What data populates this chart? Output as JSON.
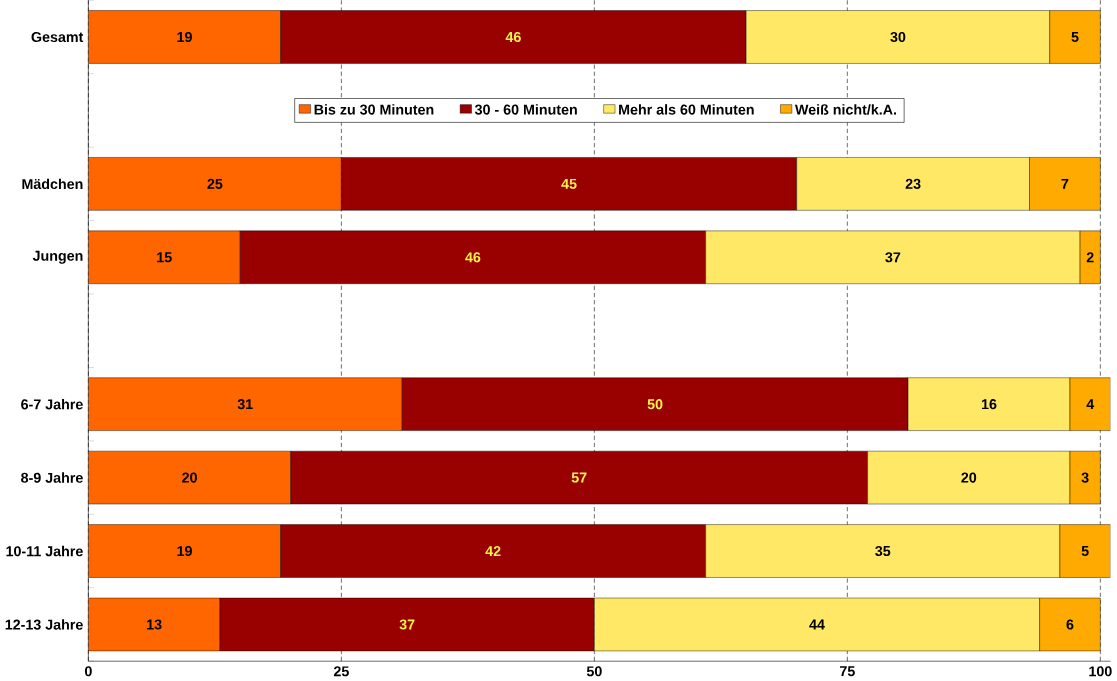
{
  "chart_data": {
    "type": "bar",
    "orientation": "horizontal",
    "stacked": true,
    "categories": [
      "Gesamt",
      null,
      "Mädchen",
      "Jungen",
      null,
      "6-7 Jahre",
      "8-9 Jahre",
      "10-11 Jahre",
      "12-13 Jahre"
    ],
    "series": [
      {
        "name": "Bis zu 30 Minuten",
        "color": "#ff6600",
        "values": [
          19,
          null,
          25,
          15,
          null,
          31,
          20,
          19,
          13
        ]
      },
      {
        "name": "30 - 60 Minuten",
        "color": "#990000",
        "values": [
          46,
          null,
          45,
          46,
          null,
          50,
          57,
          42,
          37
        ]
      },
      {
        "name": "Mehr als 60 Minuten",
        "color": "#ffe866",
        "values": [
          30,
          null,
          23,
          37,
          null,
          16,
          20,
          35,
          44
        ]
      },
      {
        "name": "Weiß nicht/k.A.",
        "color": "#ffaa00",
        "values": [
          5,
          null,
          7,
          2,
          null,
          4,
          3,
          5,
          6
        ]
      }
    ],
    "xlim": [
      0,
      101
    ],
    "xticks": [
      0,
      25,
      50,
      75,
      100
    ],
    "grid": "x",
    "legend": "top",
    "data_labels": true
  }
}
